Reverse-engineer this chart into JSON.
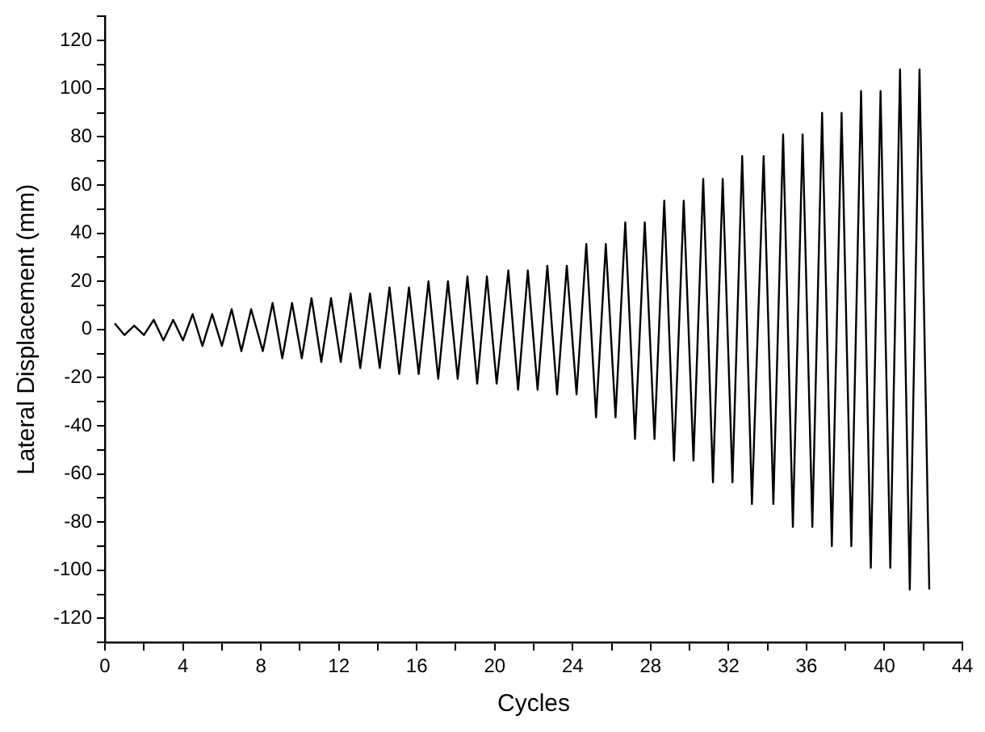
{
  "chart_data": {
    "type": "line",
    "xlabel": "Cycles",
    "ylabel": "Lateral Displacement (mm)",
    "color": "#000000",
    "marker": "none",
    "line_style": "solid",
    "grid": false,
    "legend": false,
    "x": [
      0.5,
      1.0,
      1.5,
      2.0,
      2.5,
      3.0,
      3.5,
      4.0,
      4.5,
      5.0,
      5.5,
      6.0,
      6.5,
      7.0,
      7.5,
      8.1,
      8.6,
      9.1,
      9.6,
      10.1,
      10.6,
      11.1,
      11.6,
      12.1,
      12.6,
      13.1,
      13.6,
      14.1,
      14.6,
      15.1,
      15.6,
      16.1,
      16.6,
      17.1,
      17.6,
      18.1,
      18.6,
      19.1,
      19.6,
      20.1,
      20.7,
      21.2,
      21.7,
      22.2,
      22.7,
      23.2,
      23.7,
      24.2,
      24.7,
      25.2,
      25.7,
      26.2,
      26.7,
      27.2,
      27.7,
      28.2,
      28.7,
      29.2,
      29.7,
      30.2,
      30.7,
      31.2,
      31.7,
      32.2,
      32.7,
      33.2,
      33.8,
      34.3,
      34.8,
      35.3,
      35.8,
      36.3,
      36.8,
      37.3,
      37.8,
      38.3,
      38.8,
      39.3,
      39.8,
      40.3,
      40.8,
      41.3,
      41.8,
      42.3
    ],
    "values": [
      2.5,
      -2.3,
      1.6,
      -2.3,
      4,
      -4.5,
      4,
      -4.5,
      6.4,
      -6.8,
      6.4,
      -6.8,
      8.4,
      -9,
      8.4,
      -9,
      11,
      -12,
      11,
      -12,
      13,
      -13.5,
      13,
      -13.5,
      15,
      -16,
      15,
      -16,
      17.5,
      -18.5,
      17.5,
      -18.5,
      20,
      -20.5,
      20,
      -20.5,
      22,
      -22.5,
      22,
      -22.5,
      24.5,
      -25,
      24.5,
      -25,
      26.5,
      -27,
      26.5,
      -27,
      35.5,
      -36.5,
      35.5,
      -36.5,
      44.5,
      -45.5,
      44.5,
      -45.5,
      53.5,
      -54.5,
      53.5,
      -54.5,
      62.5,
      -63.5,
      62.5,
      -63.5,
      72,
      -72.5,
      72,
      -72.5,
      81,
      -82,
      81,
      -82,
      90,
      -90,
      90,
      -90,
      99,
      -99,
      99,
      -99,
      108,
      -108,
      108,
      -108
    ],
    "xlim": [
      0,
      44
    ],
    "xticks": [
      0,
      {
        "value": 2,
        "label": null
      },
      4,
      {
        "value": 6,
        "label": null
      },
      8,
      {
        "value": 10,
        "label": null
      },
      12,
      {
        "value": 14,
        "label": null
      },
      16,
      {
        "value": 18,
        "label": null
      },
      20,
      {
        "value": 22,
        "label": null
      },
      24,
      {
        "value": 26,
        "label": null
      },
      28,
      {
        "value": 30,
        "label": null
      },
      32,
      {
        "value": 34,
        "label": null
      },
      36,
      {
        "value": 38,
        "label": null
      },
      40,
      {
        "value": 42,
        "label": null
      },
      44
    ],
    "ylim": [
      -130,
      130
    ],
    "yticks": [
      {
        "value": -130,
        "label": null
      },
      -120,
      {
        "value": -110,
        "label": null
      },
      -100,
      {
        "value": -90,
        "label": null
      },
      -80,
      {
        "value": -70,
        "label": null
      },
      -60,
      {
        "value": -50,
        "label": null
      },
      -40,
      {
        "value": -30,
        "label": null
      },
      -20,
      {
        "value": -10,
        "label": null
      },
      0,
      {
        "value": 10,
        "label": null
      },
      20,
      {
        "value": 30,
        "label": null
      },
      40,
      {
        "value": 50,
        "label": null
      },
      60,
      {
        "value": 70,
        "label": null
      },
      80,
      {
        "value": 90,
        "label": null
      },
      100,
      {
        "value": 110,
        "label": null
      },
      120,
      {
        "value": 130,
        "label": null
      }
    ]
  }
}
